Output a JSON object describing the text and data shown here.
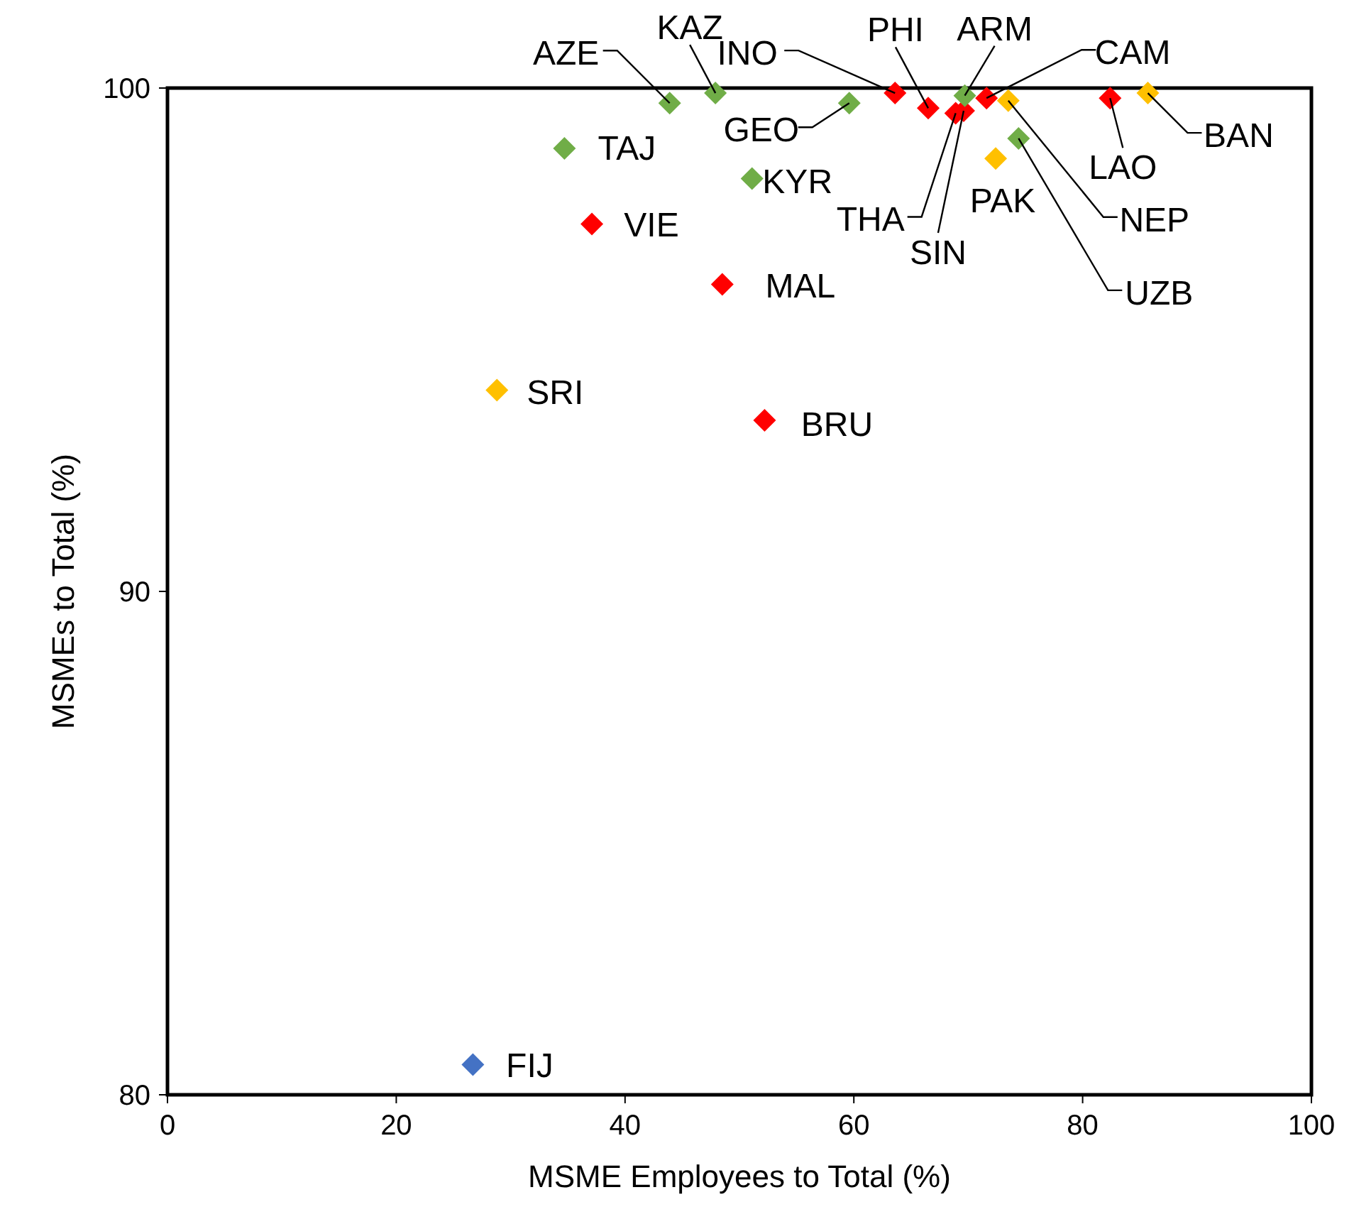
{
  "chart_data": {
    "type": "scatter",
    "xlabel": "MSME Employees to Total (%)",
    "ylabel": "MSMEs to Total (%)",
    "xlim": [
      0,
      100
    ],
    "xticks": [
      0,
      20,
      40,
      60,
      80,
      100
    ],
    "ylim": [
      80,
      100
    ],
    "yticks": [
      80,
      90,
      100
    ],
    "grid": false,
    "marker": "diamond",
    "series": [
      {
        "color": "#ff0000",
        "x": [
          63.6,
          66.5,
          68.9,
          69.6,
          71.6,
          82.4,
          37.1,
          48.5,
          52.2
        ],
        "values": [
          99.9,
          99.6,
          99.5,
          99.55,
          99.8,
          99.8,
          97.3,
          96.1,
          93.4
        ]
      },
      {
        "color": "#70ad47",
        "x": [
          43.9,
          47.9,
          59.6,
          69.7,
          74.4,
          51.1,
          34.7
        ],
        "values": [
          99.7,
          99.9,
          99.7,
          99.85,
          99.0,
          98.2,
          98.8
        ]
      },
      {
        "color": "#ffc000",
        "x": [
          73.5,
          72.4,
          85.7,
          28.8
        ],
        "values": [
          99.75,
          98.6,
          99.9,
          94.0
        ]
      },
      {
        "color": "#4472c4",
        "x": [
          26.7
        ],
        "values": [
          80.6
        ]
      }
    ],
    "annotations": [
      {
        "text": "AZE",
        "x": 43.9,
        "y": 99.7
      },
      {
        "text": "KAZ",
        "x": 47.9,
        "y": 99.9
      },
      {
        "text": "GEO",
        "x": 59.6,
        "y": 99.7
      },
      {
        "text": "INO",
        "x": 63.6,
        "y": 99.9
      },
      {
        "text": "PHI",
        "x": 66.5,
        "y": 99.6
      },
      {
        "text": "THA",
        "x": 68.9,
        "y": 99.5
      },
      {
        "text": "SIN",
        "x": 69.6,
        "y": 99.55
      },
      {
        "text": "ARM",
        "x": 69.7,
        "y": 99.85
      },
      {
        "text": "CAM",
        "x": 71.6,
        "y": 99.8
      },
      {
        "text": "NEP",
        "x": 73.5,
        "y": 99.75
      },
      {
        "text": "PAK",
        "x": 72.4,
        "y": 98.6
      },
      {
        "text": "UZB",
        "x": 74.4,
        "y": 99.0
      },
      {
        "text": "LAO",
        "x": 82.4,
        "y": 99.8
      },
      {
        "text": "BAN",
        "x": 85.7,
        "y": 99.9
      },
      {
        "text": "KYR",
        "x": 51.1,
        "y": 98.2
      },
      {
        "text": "TAJ",
        "x": 34.7,
        "y": 98.8
      },
      {
        "text": "VIE",
        "x": 37.1,
        "y": 97.3
      },
      {
        "text": "MAL",
        "x": 48.5,
        "y": 96.1
      },
      {
        "text": "SRI",
        "x": 28.8,
        "y": 94.0
      },
      {
        "text": "BRU",
        "x": 52.2,
        "y": 93.4
      },
      {
        "text": "FIJ",
        "x": 26.7,
        "y": 80.6
      }
    ]
  }
}
